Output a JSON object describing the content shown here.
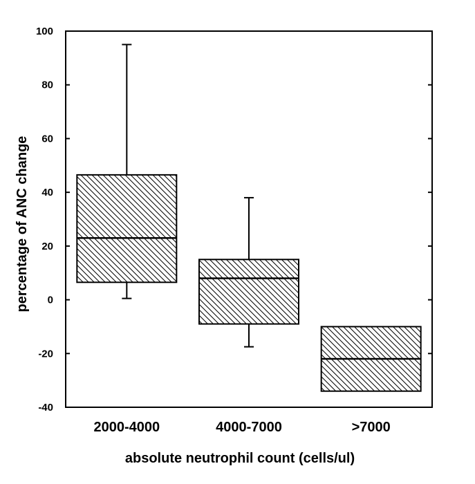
{
  "chart_data": {
    "type": "box",
    "xlabel": "absolute neutrophil count (cells/ul)",
    "ylabel": "percentage of ANC change",
    "ylim": [
      -40,
      100
    ],
    "yticks": [
      -40,
      -20,
      0,
      20,
      40,
      60,
      80,
      100
    ],
    "grid": false,
    "categories": [
      "2000-4000",
      "4000-7000",
      ">7000"
    ],
    "boxes": [
      {
        "category": "2000-4000",
        "whisker_low": 0.5,
        "q1": 6.5,
        "median": 23,
        "q3": 46.5,
        "whisker_high": 95
      },
      {
        "category": "4000-7000",
        "whisker_low": -17.5,
        "q1": -9,
        "median": 8,
        "q3": 15,
        "whisker_high": 38
      },
      {
        "category": ">7000",
        "whisker_low": null,
        "q1": -34,
        "median": -22,
        "q3": -10,
        "whisker_high": null
      }
    ]
  }
}
